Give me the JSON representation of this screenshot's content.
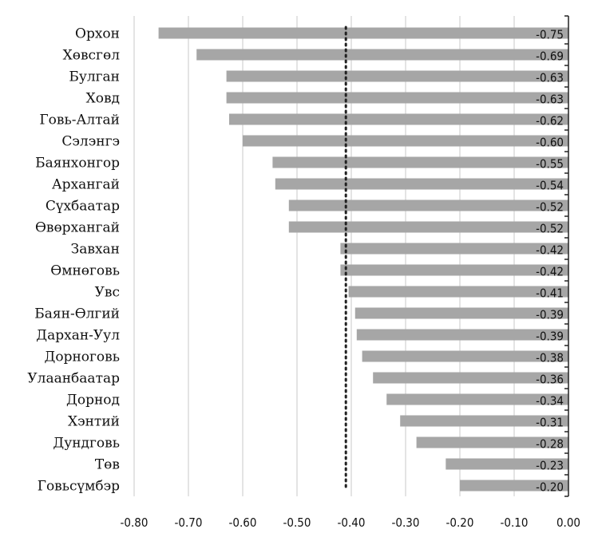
{
  "chart_data": {
    "type": "bar",
    "orientation": "horizontal",
    "categories": [
      "Орхон",
      "Хөвсгөл",
      "Булган",
      "Ховд",
      "Говь-Алтай",
      "Сэлэнгэ",
      "Баянхонгор",
      "Архангай",
      "Сүхбаатар",
      "Өвөрхангай",
      "Завхан",
      "Өмнөговь",
      "Увс",
      "Баян-Өлгий",
      "Дархан-Уул",
      "Дорноговь",
      "Улаанбаатар",
      "Дорнод",
      "Хэнтий",
      "Дундговь",
      "Төв",
      "Говьсүмбэр"
    ],
    "values": [
      -0.755,
      -0.685,
      -0.63,
      -0.63,
      -0.625,
      -0.6,
      -0.545,
      -0.54,
      -0.515,
      -0.515,
      -0.42,
      -0.42,
      -0.405,
      -0.393,
      -0.39,
      -0.38,
      -0.36,
      -0.335,
      -0.31,
      -0.28,
      -0.226,
      -0.2
    ],
    "data_labels": [
      "-0.75",
      "-0.69",
      "-0.63",
      "-0.63",
      "-0.62",
      "-0.60",
      "-0.55",
      "-0.54",
      "-0.52",
      "-0.52",
      "-0.42",
      "-0.42",
      "-0.41",
      "-0.39",
      "-0.39",
      "-0.38",
      "-0.36",
      "-0.34",
      "-0.31",
      "-0.28",
      "-0.23",
      "-0.20"
    ],
    "reference_line": -0.41,
    "xlim": [
      -0.8,
      0.0
    ],
    "x_ticks": [
      "-0.80",
      "-0.70",
      "-0.60",
      "-0.50",
      "-0.40",
      "-0.30",
      "-0.20",
      "-0.10",
      "0.00"
    ],
    "title": "",
    "xlabel": "",
    "ylabel": "",
    "grid": "vertical",
    "bar_color": "#a6a6a6",
    "grid_color": "#c8c8c8",
    "reference_line_color": "#222222"
  }
}
